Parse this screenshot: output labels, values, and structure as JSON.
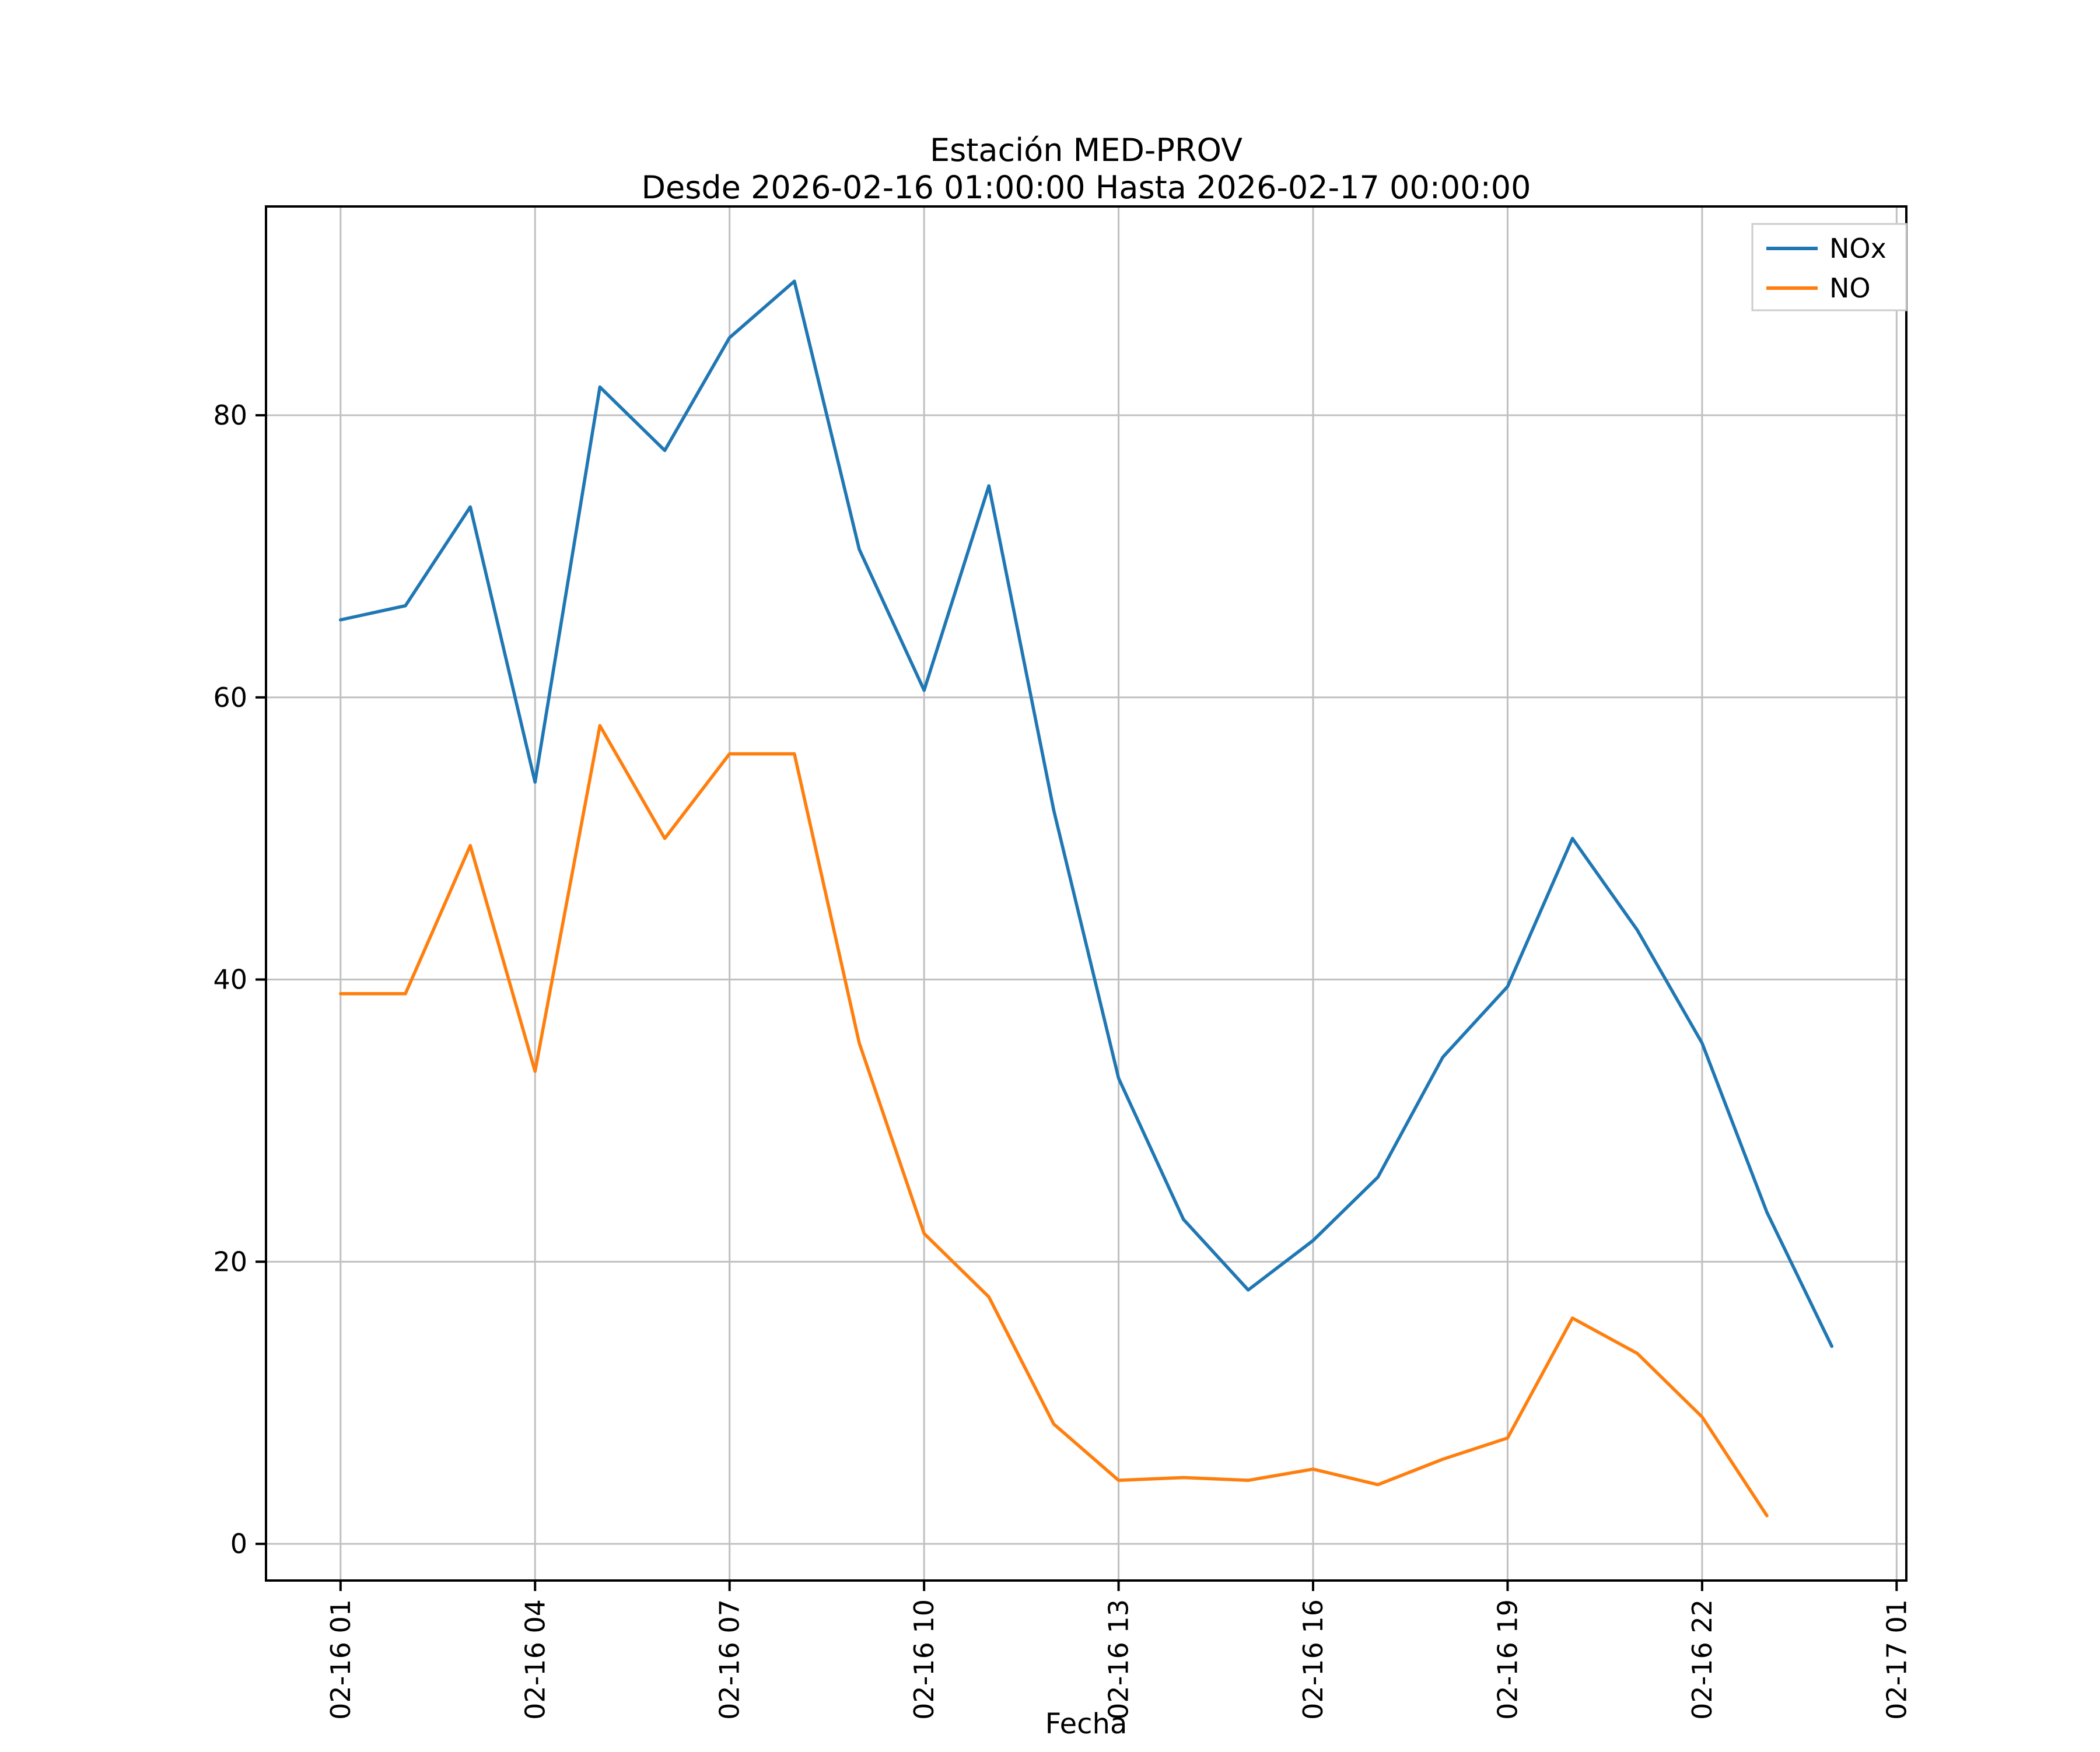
{
  "figure": {
    "title": "Estación MED-PROV",
    "subtitle": "Desde 2026-02-16 01:00:00 Hasta 2026-02-17 00:00:00",
    "xlabel": "Fecha"
  },
  "legend": {
    "position": "upper right",
    "entries": [
      {
        "label": "NOx",
        "color": "#1f77b4"
      },
      {
        "label": "NO",
        "color": "#ff7f0e"
      }
    ]
  },
  "chart_data": {
    "type": "line",
    "title": "Estación MED-PROV",
    "subtitle": "Desde 2026-02-16 01:00:00 Hasta 2026-02-17 00:00:00",
    "xlabel": "Fecha",
    "ylabel": "",
    "grid": true,
    "x_range": [
      -0.15,
      25.15
    ],
    "y_range": [
      -2.6,
      94.8
    ],
    "x_ticks": {
      "positions": [
        1,
        4,
        7,
        10,
        13,
        16,
        19,
        22,
        25
      ],
      "labels": [
        "02-16 01",
        "02-16 04",
        "02-16 07",
        "02-16 10",
        "02-16 13",
        "02-16 16",
        "02-16 19",
        "02-16 22",
        "02-17 01"
      ]
    },
    "y_ticks": [
      0,
      20,
      40,
      60,
      80
    ],
    "series": [
      {
        "name": "NOx",
        "color": "#1f77b4",
        "x": [
          1,
          2,
          3,
          4,
          5,
          6,
          7,
          8,
          9,
          10,
          11,
          12,
          13,
          14,
          15,
          16,
          17,
          18,
          19,
          20,
          21,
          22,
          23,
          24
        ],
        "values": [
          65.5,
          66.5,
          73.5,
          54,
          82,
          77.5,
          85.5,
          89.5,
          70.5,
          60.5,
          75,
          52,
          33,
          23,
          18,
          21.5,
          26,
          34.5,
          39.5,
          50,
          43.5,
          35.5,
          23.5,
          14
        ]
      },
      {
        "name": "NO",
        "color": "#ff7f0e",
        "x": [
          1,
          2,
          3,
          4,
          5,
          6,
          7,
          8,
          9,
          10,
          11,
          12,
          13,
          14,
          15,
          16,
          17,
          18,
          19,
          20,
          21,
          22,
          23
        ],
        "values": [
          39,
          39,
          49.5,
          33.5,
          58,
          50,
          56,
          56,
          35.5,
          22,
          17.5,
          8.5,
          4.5,
          4.7,
          4.5,
          5.3,
          4.2,
          6,
          7.5,
          16,
          13.5,
          9,
          2
        ]
      }
    ]
  }
}
